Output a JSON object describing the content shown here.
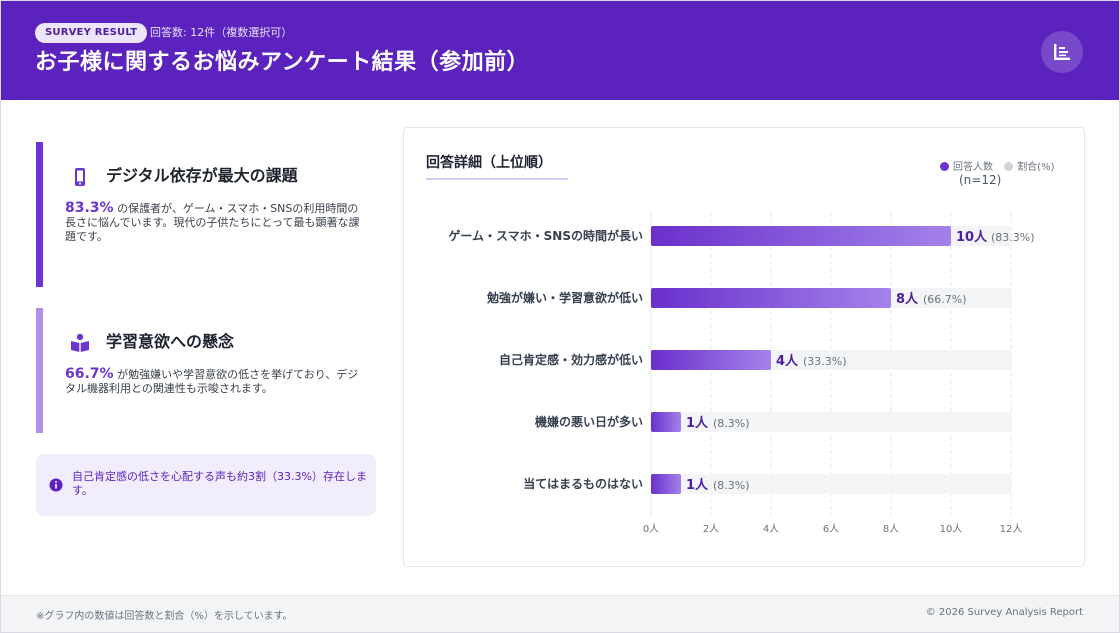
{
  "header": {
    "badge": "SURVEY RESULT",
    "response_count": "回答数: 12件（複数選択可）",
    "title": "お子様に関するお悩みアンケート結果（参加前）",
    "menu_icon": "list-icon",
    "bg_color": "#5b22bd"
  },
  "insights": [
    {
      "icon": "smartphone-icon",
      "heading": "デジタル依存が最大の課題",
      "pct": "83.3%",
      "text": " の保護者が、ゲーム・スマホ・SNSの利用時間の長さに悩んでいます。現代の子供たちにとって最も顕著な課題です。"
    },
    {
      "icon": "book-reader-icon",
      "heading": "学習意欲への懸念",
      "pct": "66.7%",
      "text": " が勉強嫌いや学習意欲の低さを挙げており、デジタル機器利用との関連性も示唆されます。"
    }
  ],
  "note": {
    "icon": "info-icon",
    "text": "自己肯定感の低さを心配する声も約3割（33.3%）存在します。"
  },
  "panel": {
    "title": "回答詳細（上位順）",
    "legend": [
      {
        "label": "回答人数",
        "color": "#6d35d0"
      },
      {
        "label": "割合(%)",
        "color": "#d1d5db"
      }
    ],
    "n_label": "(n=12)"
  },
  "chart_data": {
    "type": "bar",
    "orientation": "horizontal",
    "categories": [
      "ゲーム・スマホ・SNSの時間が長い",
      "勉強が嫌い・学習意欲が低い",
      "自己肯定感・効力感が低い",
      "機嫌の悪い日が多い",
      "当てはまるものはない"
    ],
    "series": [
      {
        "name": "回答人数",
        "values": [
          10,
          8,
          4,
          1,
          1
        ],
        "color": "#6d35d0"
      }
    ],
    "value_labels": [
      "10人",
      "8人",
      "4人",
      "1人",
      "1人"
    ],
    "pct_labels": [
      "(83.3%)",
      "(66.7%)",
      "(33.3%)",
      "(8.3%)",
      "(8.3%)"
    ],
    "xlim": [
      0,
      12
    ],
    "xticks": [
      "0人",
      "2人",
      "4人",
      "6人",
      "8人",
      "10人",
      "12人"
    ],
    "xtick_values": [
      0,
      2,
      4,
      6,
      8,
      10,
      12
    ],
    "grid": true,
    "legend_position": "top-right"
  },
  "footer": {
    "note": "※グラフ内の数値は回答数と割合（%）を示しています。",
    "copyright": "© 2026 Survey Analysis Report"
  }
}
